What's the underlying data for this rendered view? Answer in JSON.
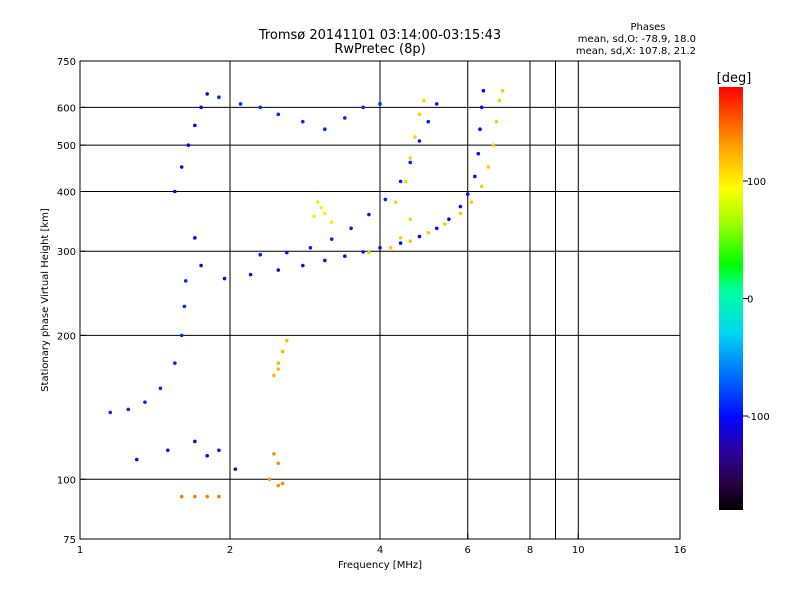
{
  "chart_data": {
    "type": "scatter",
    "title": "Tromsø 20141101 03:14:00-03:15:43",
    "subtitle": "RwPretec (8p)",
    "stats": {
      "heading": "Phases",
      "line1": "mean, sd,O: -78.9, 18.0",
      "line2": "mean, sd,X: 107.8, 21.2"
    },
    "xlabel": "Frequency [MHz]",
    "ylabel": "Stationary phase Virtual Height [km]",
    "xscale": "log",
    "yscale": "log",
    "xlim": [
      1,
      16
    ],
    "ylim": [
      75,
      750
    ],
    "xticks": [
      {
        "v": 1,
        "label": "1"
      },
      {
        "v": 2,
        "label": "2"
      },
      {
        "v": 4,
        "label": "4"
      },
      {
        "v": 6,
        "label": "6"
      },
      {
        "v": 8,
        "label": "8"
      },
      {
        "v": 10,
        "label": "10"
      },
      {
        "v": 16,
        "label": "16"
      }
    ],
    "yticks": [
      {
        "v": 75,
        "label": "75"
      },
      {
        "v": 100,
        "label": "100"
      },
      {
        "v": 200,
        "label": "200"
      },
      {
        "v": 300,
        "label": "300"
      },
      {
        "v": 400,
        "label": "400"
      },
      {
        "v": 500,
        "label": "500"
      },
      {
        "v": 600,
        "label": "600"
      },
      {
        "v": 750,
        "label": "750"
      }
    ],
    "xgrid": [
      2,
      4,
      6,
      8,
      9,
      10
    ],
    "ygrid": [
      100,
      200,
      300,
      400,
      500,
      600
    ],
    "grid": true,
    "colorbar": {
      "label": "[deg]",
      "range": [
        -180,
        180
      ],
      "ticks": [
        {
          "v": 100,
          "label": "100"
        },
        {
          "v": 0,
          "label": "0"
        },
        {
          "v": -100,
          "label": "-100"
        }
      ]
    },
    "series": [
      {
        "id": "o-trace-lower",
        "color_phase": -100,
        "points": [
          [
            1.95,
            263
          ],
          [
            2.2,
            268
          ],
          [
            2.5,
            274
          ],
          [
            2.8,
            280
          ],
          [
            3.1,
            287
          ],
          [
            3.4,
            293
          ],
          [
            3.7,
            299
          ],
          [
            4.0,
            305
          ],
          [
            4.4,
            312
          ],
          [
            4.8,
            322
          ],
          [
            5.2,
            335
          ],
          [
            5.5,
            350
          ],
          [
            5.8,
            372
          ],
          [
            6.0,
            395
          ],
          [
            6.2,
            430
          ],
          [
            6.3,
            480
          ],
          [
            6.35,
            540
          ],
          [
            6.4,
            600
          ],
          [
            6.45,
            650
          ]
        ]
      },
      {
        "id": "o-trace-upper",
        "color_phase": -95,
        "points": [
          [
            2.3,
            295
          ],
          [
            2.6,
            298
          ],
          [
            2.9,
            305
          ],
          [
            3.2,
            318
          ],
          [
            3.5,
            335
          ],
          [
            3.8,
            358
          ],
          [
            4.1,
            385
          ],
          [
            4.4,
            420
          ],
          [
            4.6,
            460
          ],
          [
            4.8,
            510
          ],
          [
            5.0,
            560
          ],
          [
            5.2,
            610
          ]
        ]
      },
      {
        "id": "x-trace",
        "color_phase": 115,
        "points": [
          [
            3.8,
            298
          ],
          [
            4.2,
            305
          ],
          [
            4.6,
            315
          ],
          [
            5.0,
            328
          ],
          [
            5.4,
            342
          ],
          [
            5.8,
            360
          ],
          [
            6.1,
            380
          ],
          [
            6.4,
            410
          ],
          [
            6.6,
            450
          ],
          [
            6.75,
            500
          ],
          [
            6.85,
            560
          ],
          [
            6.95,
            620
          ],
          [
            7.05,
            650
          ]
        ]
      },
      {
        "id": "x-cluster-4to5mhz",
        "color_phase": 110,
        "points": [
          [
            4.3,
            380
          ],
          [
            4.5,
            420
          ],
          [
            4.6,
            470
          ],
          [
            4.7,
            520
          ],
          [
            4.8,
            580
          ],
          [
            4.9,
            620
          ],
          [
            4.6,
            350
          ],
          [
            4.4,
            320
          ]
        ]
      },
      {
        "id": "x-blob-3mhz",
        "color_phase": 100,
        "points": [
          [
            2.95,
            355
          ],
          [
            3.05,
            370
          ],
          [
            3.1,
            360
          ],
          [
            3.2,
            345
          ],
          [
            3.0,
            380
          ]
        ]
      },
      {
        "id": "x-blob-2p5mhz",
        "color_phase": 120,
        "points": [
          [
            2.45,
            165
          ],
          [
            2.5,
            175
          ],
          [
            2.55,
            185
          ],
          [
            2.6,
            195
          ],
          [
            2.5,
            170
          ]
        ]
      },
      {
        "id": "x-spots-2p4mhz",
        "color_phase": 135,
        "points": [
          [
            2.45,
            113
          ],
          [
            2.5,
            108
          ],
          [
            2.4,
            100
          ],
          [
            2.55,
            98
          ],
          [
            2.5,
            97
          ]
        ]
      },
      {
        "id": "x-bottom-1p7mhz",
        "color_phase": 140,
        "points": [
          [
            1.6,
            92
          ],
          [
            1.7,
            92
          ],
          [
            1.8,
            92
          ],
          [
            1.9,
            92
          ]
        ]
      },
      {
        "id": "e-layer-cusp",
        "color_phase": -90,
        "points": [
          [
            1.15,
            138
          ],
          [
            1.25,
            140
          ],
          [
            1.35,
            145
          ],
          [
            1.45,
            155
          ],
          [
            1.55,
            175
          ],
          [
            1.6,
            200
          ],
          [
            1.62,
            230
          ],
          [
            1.63,
            260
          ]
        ]
      },
      {
        "id": "f-layer-vertical-1p7mhz",
        "color_phase": -105,
        "points": [
          [
            1.55,
            400
          ],
          [
            1.6,
            450
          ],
          [
            1.65,
            500
          ],
          [
            1.7,
            550
          ],
          [
            1.75,
            600
          ],
          [
            1.8,
            640
          ],
          [
            1.7,
            320
          ],
          [
            1.75,
            280
          ]
        ]
      },
      {
        "id": "top-band-2to4mhz",
        "color_phase": -90,
        "points": [
          [
            1.9,
            630
          ],
          [
            2.1,
            610
          ],
          [
            2.3,
            600
          ],
          [
            2.5,
            580
          ],
          [
            2.8,
            560
          ],
          [
            3.1,
            540
          ],
          [
            3.4,
            570
          ],
          [
            3.7,
            600
          ],
          [
            4.0,
            610
          ]
        ]
      },
      {
        "id": "sporadic-low",
        "color_phase": -110,
        "points": [
          [
            1.3,
            110
          ],
          [
            1.5,
            115
          ],
          [
            1.7,
            120
          ],
          [
            1.9,
            115
          ],
          [
            2.05,
            105
          ],
          [
            1.8,
            112
          ]
        ]
      }
    ]
  }
}
